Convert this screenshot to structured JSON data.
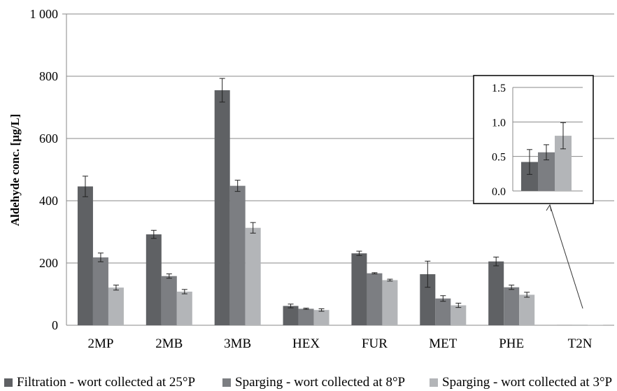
{
  "chart_data": {
    "type": "bar",
    "ylabel": "Aldehyde conc. [µg/L]",
    "ylim": [
      0,
      1000
    ],
    "yticks": [
      "0",
      "200",
      "400",
      "600",
      "800",
      "1 000"
    ],
    "categories": [
      "2MP",
      "2MB",
      "3MB",
      "HEX",
      "FUR",
      "MET",
      "PHE",
      "T2N"
    ],
    "grid": true,
    "legend_position": "bottom",
    "series": [
      {
        "name": "Filtration - wort collected at 25°P",
        "color": "#5f6164",
        "values": [
          446,
          292,
          755,
          62,
          231,
          164,
          205,
          0.42
        ],
        "errors": [
          33,
          13,
          38,
          6,
          7,
          42,
          14,
          0.18
        ]
      },
      {
        "name": "Sparging - wort collected at 8°P",
        "color": "#7c7e82",
        "values": [
          218,
          158,
          448,
          53,
          167,
          86,
          122,
          0.56
        ],
        "errors": [
          14,
          7,
          18,
          2,
          2,
          9,
          7,
          0.11
        ]
      },
      {
        "name": "Sparging - wort collected at 3°P",
        "color": "#b3b5b8",
        "values": [
          121,
          108,
          313,
          49,
          145,
          64,
          98,
          0.8
        ],
        "errors": [
          8,
          7,
          17,
          4,
          3,
          7,
          8,
          0.19
        ]
      }
    ],
    "inset": {
      "category": "T2N",
      "ylim": [
        0,
        1.5
      ],
      "yticks": [
        "0.0",
        "0.5",
        "1.0",
        "1.5"
      ]
    }
  }
}
